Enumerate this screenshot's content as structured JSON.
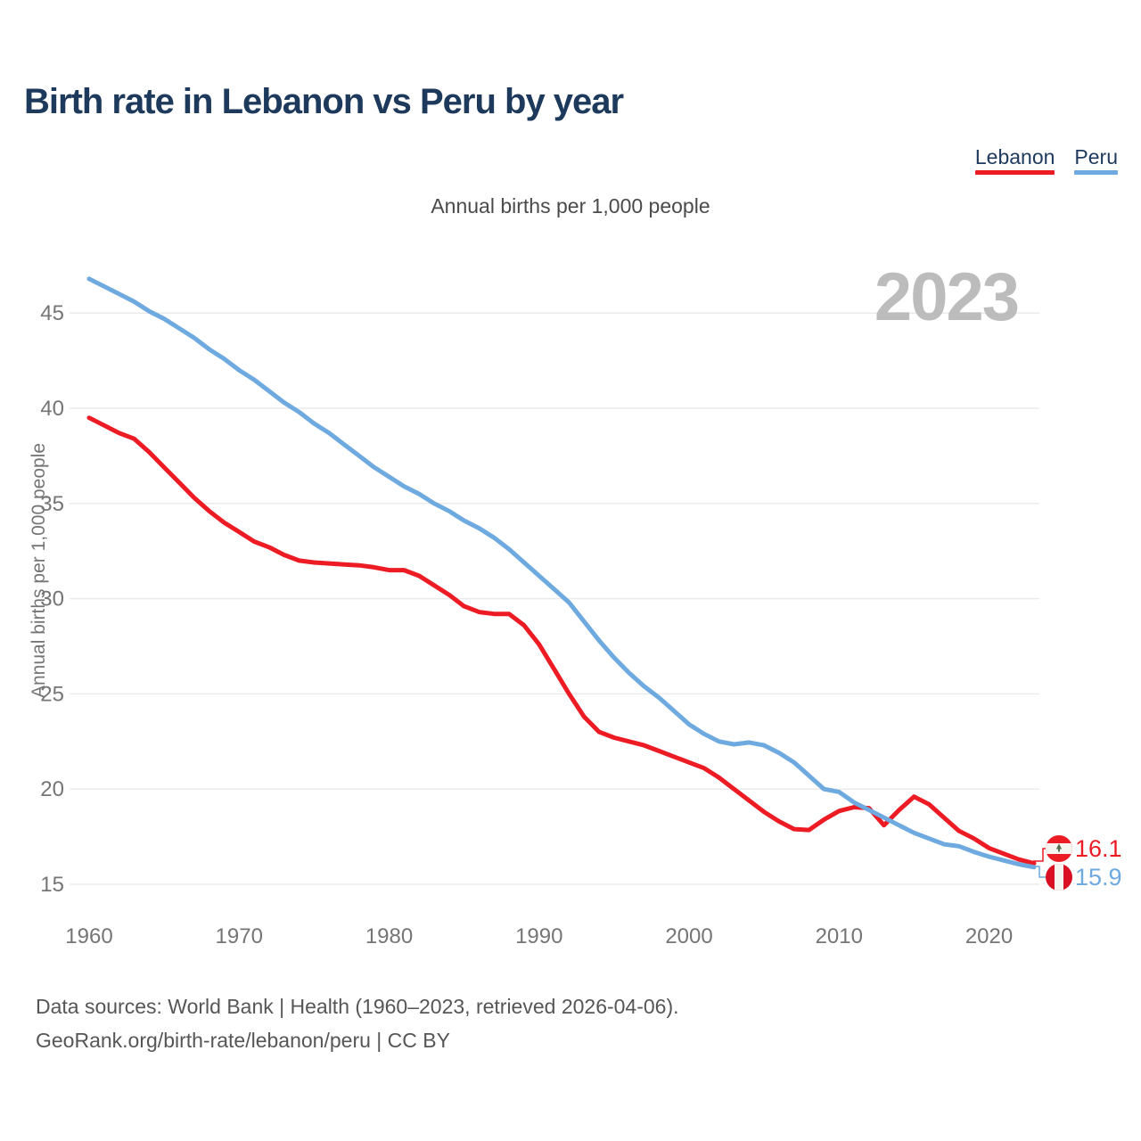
{
  "page": {
    "title": "Birth rate in Lebanon vs Peru by year",
    "subtitle": "Annual births per 1,000 people",
    "watermark": "2023",
    "footer_line1": "Data sources: World Bank | Health (1960–2023, retrieved 2026-04-06).",
    "footer_line2": "GeoRank.org/birth-rate/lebanon/peru | CC BY"
  },
  "legend": [
    {
      "label": "Lebanon",
      "color": "#ec1b24"
    },
    {
      "label": "Peru",
      "color": "#6eaadf"
    }
  ],
  "colors": {
    "lebanon": "#ec1b24",
    "peru": "#6eaadf",
    "title_navy": "#1d3a5c",
    "tick_gray": "#757575",
    "gridline": "#ebebeb",
    "watermark_gray": "#bcbcbc",
    "flag_red_lebanon": "#ed1c24",
    "flag_red_peru": "#d91023",
    "flag_white": "#f4f5f0",
    "cedar_green": "#51704f"
  },
  "chart_data": {
    "type": "line",
    "title": "Birth rate in Lebanon vs Peru by year",
    "subtitle": "Annual births per 1,000 people",
    "xlabel": "",
    "ylabel": "Annual births per 1,000 people",
    "grid": "horizontal",
    "legend_position": "top-right",
    "watermark": "2023",
    "xlim": [
      1960,
      2023
    ],
    "ylim": [
      15,
      47.5
    ],
    "x_ticks": [
      1960,
      1970,
      1980,
      1990,
      2000,
      2010,
      2020
    ],
    "y_ticks": [
      15,
      20,
      25,
      30,
      35,
      40,
      45
    ],
    "x": [
      1960,
      1961,
      1962,
      1963,
      1964,
      1965,
      1966,
      1967,
      1968,
      1969,
      1970,
      1971,
      1972,
      1973,
      1974,
      1975,
      1976,
      1977,
      1978,
      1979,
      1980,
      1981,
      1982,
      1983,
      1984,
      1985,
      1986,
      1987,
      1988,
      1989,
      1990,
      1991,
      1992,
      1993,
      1994,
      1995,
      1996,
      1997,
      1998,
      1999,
      2000,
      2001,
      2002,
      2003,
      2004,
      2005,
      2006,
      2007,
      2008,
      2009,
      2010,
      2011,
      2012,
      2013,
      2014,
      2015,
      2016,
      2017,
      2018,
      2019,
      2020,
      2021,
      2022,
      2023
    ],
    "series": [
      {
        "name": "Lebanon",
        "color": "#ec1b24",
        "end_label": "16.1",
        "flag_icon": "lebanon-flag-icon",
        "values": [
          39.5,
          39.1,
          38.7,
          38.4,
          37.7,
          36.9,
          36.1,
          35.3,
          34.6,
          34.0,
          33.5,
          33.0,
          32.7,
          32.3,
          32.0,
          31.9,
          31.85,
          31.8,
          31.75,
          31.65,
          31.5,
          31.5,
          31.2,
          30.7,
          30.2,
          29.6,
          29.3,
          29.2,
          29.2,
          28.6,
          27.6,
          26.3,
          25.0,
          23.8,
          23.0,
          22.7,
          22.5,
          22.3,
          22.0,
          21.7,
          21.4,
          21.1,
          20.6,
          20.0,
          19.4,
          18.8,
          18.3,
          17.9,
          17.85,
          18.4,
          18.85,
          19.05,
          19.0,
          18.1,
          18.9,
          19.6,
          19.2,
          18.5,
          17.8,
          17.4,
          16.9,
          16.6,
          16.3,
          16.1
        ]
      },
      {
        "name": "Peru",
        "color": "#6eaadf",
        "end_label": "15.9",
        "flag_icon": "peru-flag-icon",
        "values": [
          46.8,
          46.4,
          46.0,
          45.6,
          45.1,
          44.7,
          44.2,
          43.7,
          43.1,
          42.6,
          42.0,
          41.5,
          40.9,
          40.3,
          39.8,
          39.2,
          38.7,
          38.1,
          37.5,
          36.9,
          36.4,
          35.9,
          35.5,
          35.0,
          34.6,
          34.1,
          33.7,
          33.2,
          32.6,
          31.9,
          31.2,
          30.5,
          29.8,
          28.8,
          27.8,
          26.9,
          26.1,
          25.4,
          24.8,
          24.1,
          23.4,
          22.9,
          22.5,
          22.35,
          22.45,
          22.3,
          21.9,
          21.4,
          20.7,
          20.0,
          19.85,
          19.3,
          18.9,
          18.5,
          18.1,
          17.7,
          17.4,
          17.1,
          17.0,
          16.7,
          16.45,
          16.25,
          16.05,
          15.9
        ]
      }
    ]
  }
}
